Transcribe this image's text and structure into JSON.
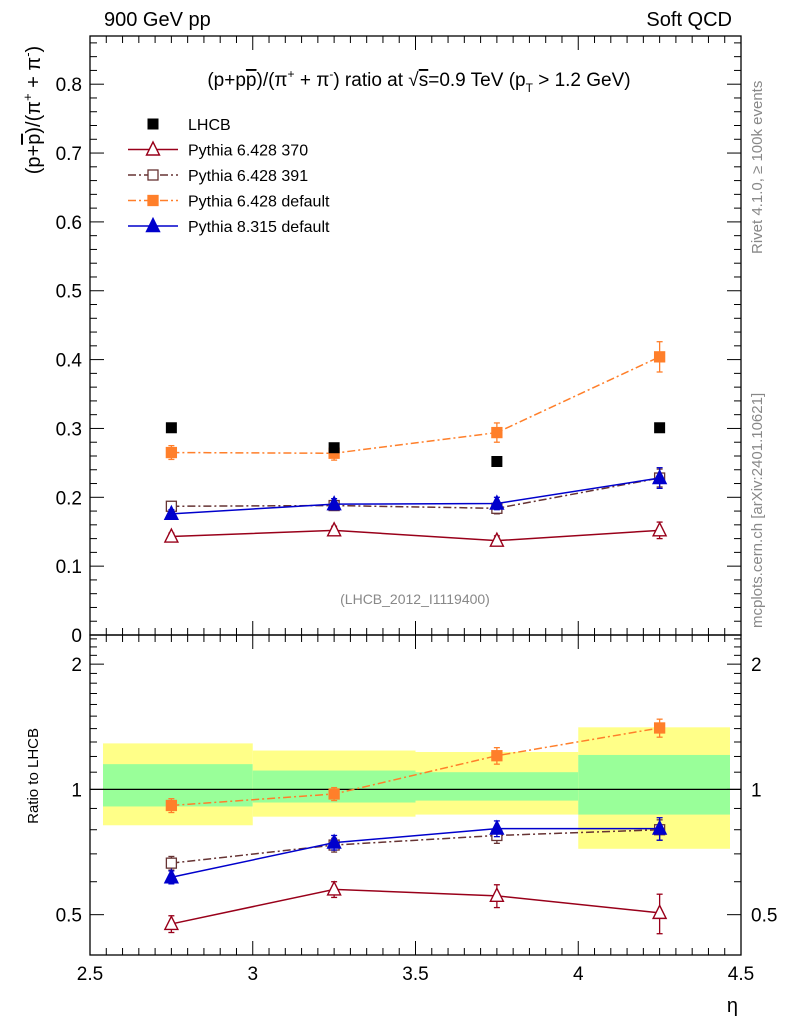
{
  "header": {
    "left": "900 GeV pp",
    "right": "Soft QCD"
  },
  "side_labels": {
    "rivet": "Rivet 4.1.0, ≥ 100k events",
    "source": "mcplots.cern.ch [arXiv:2401.10621]"
  },
  "chart_data": {
    "type": "scatter",
    "title": "(p+p̄)/(π⁺ + π⁻) ratio at √s=0.9 TeV (p_T > 1.2 GeV)",
    "analysis_tag": "(LHCB_2012_I1119400)",
    "xlabel": "η",
    "ylabel": "(p+p̄)/(π⁺ + π⁻)",
    "ratio_ylabel": "Ratio to LHCB",
    "xlim": [
      2.5,
      4.5
    ],
    "ylim": [
      0,
      0.87
    ],
    "ratio_ylim": [
      0.4,
      2.35
    ],
    "x_ticks": [
      "2.5",
      "3",
      "3.5",
      "4",
      "4.5"
    ],
    "y_ticks": [
      "0",
      "0.1",
      "0.2",
      "0.3",
      "0.4",
      "0.5",
      "0.6",
      "0.7",
      "0.8"
    ],
    "ratio_y_ticks": [
      "0.5",
      "1",
      "2"
    ],
    "x": [
      2.75,
      3.25,
      3.75,
      4.25
    ],
    "x_bins": [
      [
        2.5,
        3.0
      ],
      [
        3.0,
        3.5
      ],
      [
        3.5,
        4.0
      ],
      [
        4.0,
        4.5
      ]
    ],
    "data": {
      "name": "LHCB",
      "values": [
        0.301,
        0.272,
        0.252,
        0.301
      ],
      "band_inner": [
        [
          0.91,
          1.15
        ],
        [
          0.93,
          1.11
        ],
        [
          0.94,
          1.1
        ],
        [
          0.87,
          1.21
        ]
      ],
      "band_outer": [
        [
          0.82,
          1.29
        ],
        [
          0.86,
          1.24
        ],
        [
          0.87,
          1.23
        ],
        [
          0.72,
          1.41
        ]
      ]
    },
    "series": [
      {
        "name": "Pythia 6.428 370",
        "color": "#99001a",
        "marker": "open-triangle",
        "dash": "solid",
        "values": [
          0.143,
          0.152,
          0.137,
          0.152
        ],
        "errors": [
          0.005,
          0.006,
          0.007,
          0.012
        ],
        "ratio": [
          0.475,
          0.575,
          0.555,
          0.505
        ],
        "ratio_errors": [
          0.022,
          0.025,
          0.035,
          0.055
        ]
      },
      {
        "name": "Pythia 6.428 391",
        "color": "#663333",
        "marker": "open-square",
        "dash": "dashdot",
        "values": [
          0.187,
          0.188,
          0.184,
          0.228
        ],
        "errors": [
          0.006,
          0.007,
          0.008,
          0.013
        ],
        "ratio": [
          0.665,
          0.735,
          0.775,
          0.8
        ],
        "ratio_errors": [
          0.025,
          0.028,
          0.033,
          0.045
        ]
      },
      {
        "name": "Pythia 6.428 default",
        "color": "#ff7f2a",
        "marker": "filled-square",
        "dash": "dashdot",
        "values": [
          0.265,
          0.264,
          0.294,
          0.404
        ],
        "errors": [
          0.01,
          0.01,
          0.014,
          0.022
        ],
        "ratio": [
          0.915,
          0.975,
          1.205,
          1.405
        ],
        "ratio_errors": [
          0.035,
          0.035,
          0.055,
          0.07
        ]
      },
      {
        "name": "Pythia 8.315 default",
        "color": "#0000cc",
        "marker": "filled-triangle",
        "dash": "solid",
        "values": [
          0.176,
          0.19,
          0.191,
          0.228
        ],
        "errors": [
          0.006,
          0.008,
          0.009,
          0.015
        ],
        "ratio": [
          0.615,
          0.745,
          0.805,
          0.805
        ],
        "ratio_errors": [
          0.022,
          0.03,
          0.035,
          0.05
        ]
      }
    ]
  }
}
